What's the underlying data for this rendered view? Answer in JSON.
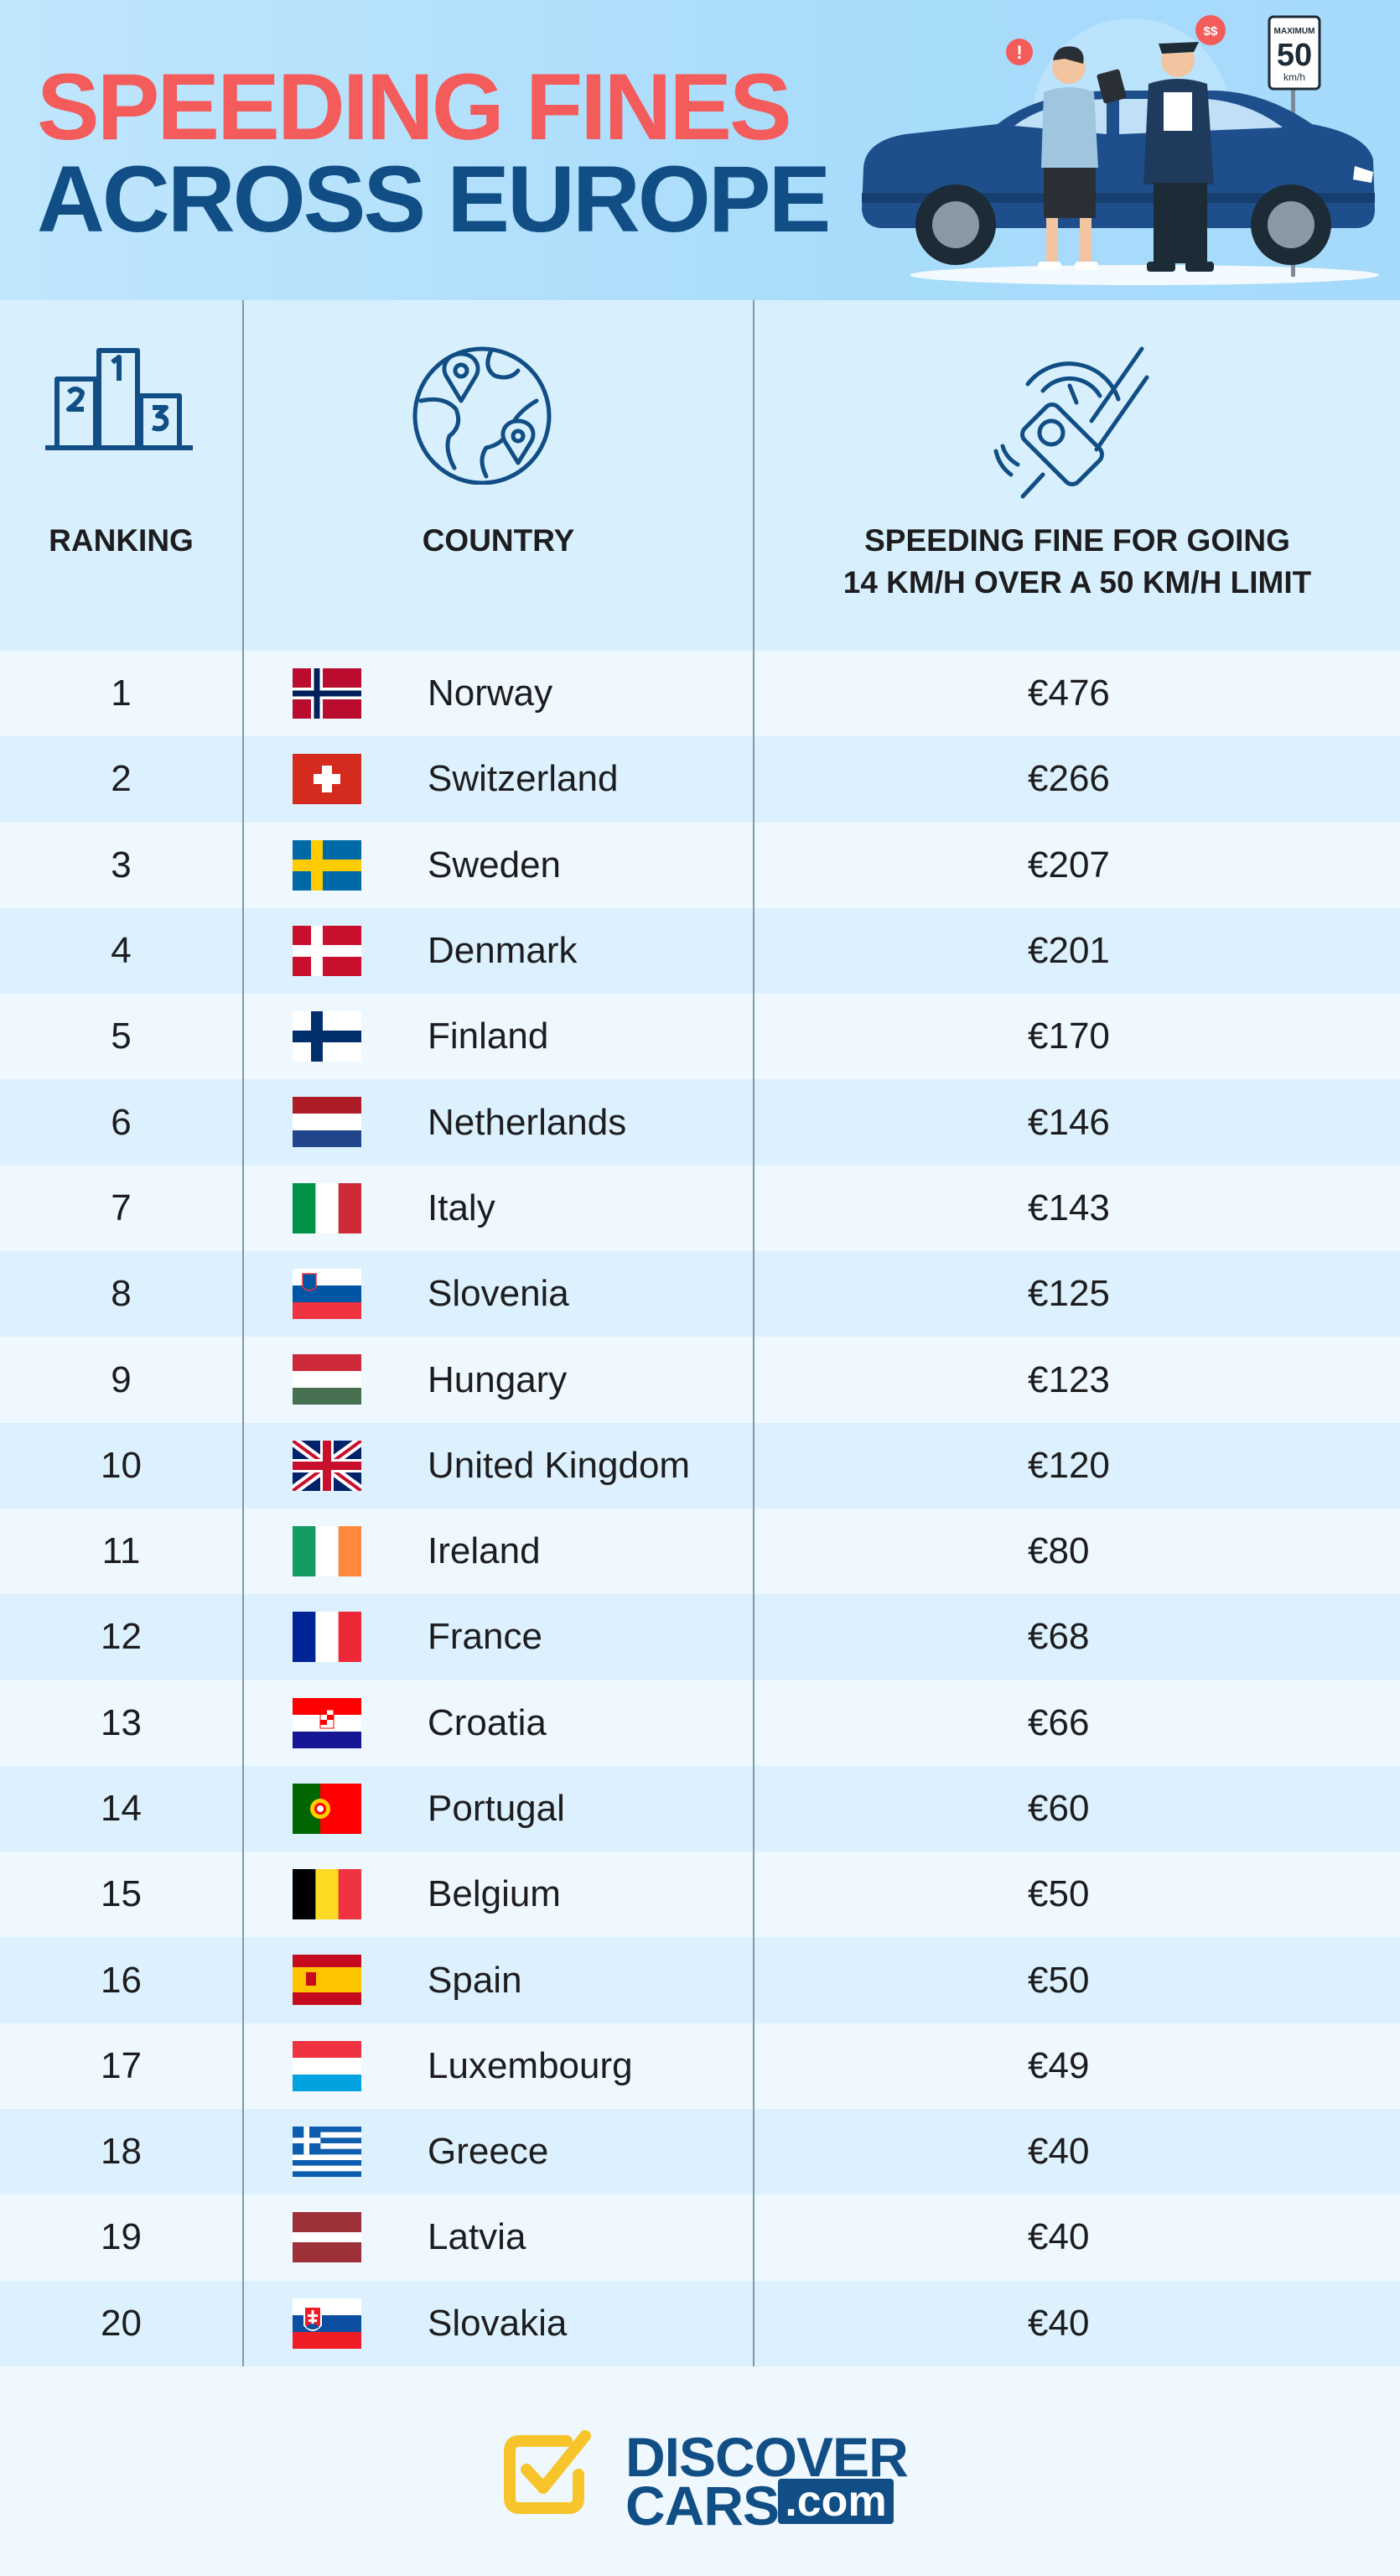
{
  "header": {
    "title_line1": "SPEEDING FINES",
    "title_line2": "ACROSS EUROPE",
    "sign_top": "MAXIMUM",
    "sign_number": "50",
    "sign_unit": "km/h",
    "badge_alert": "!",
    "badge_money": "$$"
  },
  "columns": {
    "ranking": "RANKING",
    "country": "COUNTRY",
    "fine_line1": "SPEEDING FINE FOR GOING",
    "fine_line2": "14 KM/H OVER A 50 KM/H LIMIT"
  },
  "icons": {
    "ranking": "podium-icon",
    "country": "globe-location-icon",
    "fine": "speed-camera-icon"
  },
  "rows": [
    {
      "rank": "1",
      "country": "Norway",
      "fine": "€476",
      "flag": "norway"
    },
    {
      "rank": "2",
      "country": "Switzerland",
      "fine": "€266",
      "flag": "switzerland"
    },
    {
      "rank": "3",
      "country": "Sweden",
      "fine": "€207",
      "flag": "sweden"
    },
    {
      "rank": "4",
      "country": "Denmark",
      "fine": "€201",
      "flag": "denmark"
    },
    {
      "rank": "5",
      "country": "Finland",
      "fine": "€170",
      "flag": "finland"
    },
    {
      "rank": "6",
      "country": "Netherlands",
      "fine": "€146",
      "flag": "netherlands"
    },
    {
      "rank": "7",
      "country": "Italy",
      "fine": "€143",
      "flag": "italy"
    },
    {
      "rank": "8",
      "country": "Slovenia",
      "fine": "€125",
      "flag": "slovenia"
    },
    {
      "rank": "9",
      "country": "Hungary",
      "fine": "€123",
      "flag": "hungary"
    },
    {
      "rank": "10",
      "country": "United Kingdom",
      "fine": "€120",
      "flag": "united-kingdom"
    },
    {
      "rank": "11",
      "country": "Ireland",
      "fine": "€80",
      "flag": "ireland"
    },
    {
      "rank": "12",
      "country": "France",
      "fine": "€68",
      "flag": "france"
    },
    {
      "rank": "13",
      "country": "Croatia",
      "fine": "€66",
      "flag": "croatia"
    },
    {
      "rank": "14",
      "country": "Portugal",
      "fine": "€60",
      "flag": "portugal"
    },
    {
      "rank": "15",
      "country": "Belgium",
      "fine": "€50",
      "flag": "belgium"
    },
    {
      "rank": "16",
      "country": "Spain",
      "fine": "€50",
      "flag": "spain"
    },
    {
      "rank": "17",
      "country": "Luxembourg",
      "fine": "€49",
      "flag": "luxembourg"
    },
    {
      "rank": "18",
      "country": "Greece",
      "fine": "€40",
      "flag": "greece"
    },
    {
      "rank": "19",
      "country": "Latvia",
      "fine": "€40",
      "flag": "latvia"
    },
    {
      "rank": "20",
      "country": "Slovakia",
      "fine": "€40",
      "flag": "slovakia"
    }
  ],
  "footer": {
    "logo_line1": "DISCOVER",
    "logo_line2": "CARS",
    "logo_domain": ".com"
  },
  "colors": {
    "title_red": "#f45c5c",
    "title_blue": "#114e85",
    "row_light": "#eef8fe",
    "row_dark": "#dcf1fd",
    "logo_yellow": "#f7c52b"
  }
}
